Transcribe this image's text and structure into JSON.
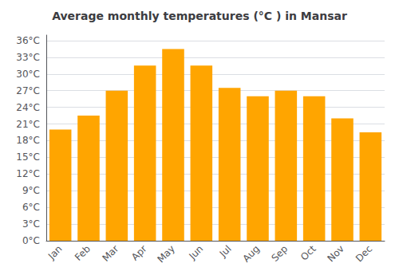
{
  "chart_data": {
    "type": "bar",
    "title": "Average monthly temperatures (°C ) in Mansar",
    "categories": [
      "Jan",
      "Feb",
      "Mar",
      "Apr",
      "May",
      "Jun",
      "Jul",
      "Aug",
      "Sep",
      "Oct",
      "Nov",
      "Dec"
    ],
    "values": [
      20.0,
      22.5,
      27.0,
      31.5,
      34.5,
      31.5,
      27.5,
      26.0,
      27.0,
      26.0,
      22.0,
      19.5
    ],
    "color": "#FFA500",
    "ylim": [
      0,
      37
    ],
    "yticks": [
      {
        "value": 0,
        "label": "0°C"
      },
      {
        "value": 3,
        "label": "3°C"
      },
      {
        "value": 6,
        "label": "6°C"
      },
      {
        "value": 9,
        "label": "9°C"
      },
      {
        "value": 12,
        "label": "12°C"
      },
      {
        "value": 15,
        "label": "15°C"
      },
      {
        "value": 18,
        "label": "18°C"
      },
      {
        "value": 21,
        "label": "21°C"
      },
      {
        "value": 24,
        "label": "24°C"
      },
      {
        "value": 27,
        "label": "27°C"
      },
      {
        "value": 30,
        "label": "30°C"
      },
      {
        "value": 33,
        "label": "33°C"
      },
      {
        "value": 36,
        "label": "36°C"
      }
    ],
    "grid": true
  }
}
